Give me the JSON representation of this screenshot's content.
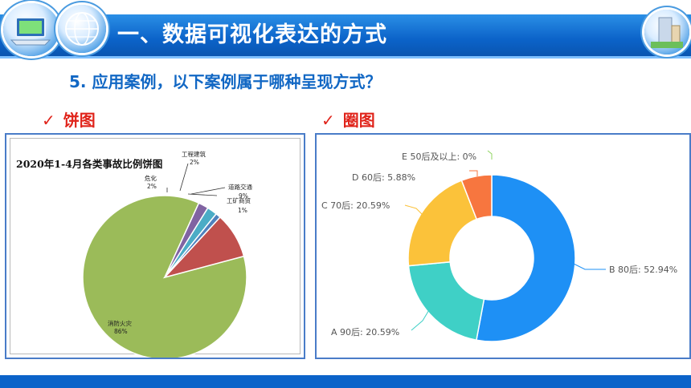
{
  "header": {
    "title": "一、数据可视化表达的方式"
  },
  "subtitle": "5. 应用案例，以下案例属于哪种呈现方式？",
  "left_category": {
    "check": "✓",
    "label": "饼图"
  },
  "right_category": {
    "check": "✓",
    "label": "圈图"
  },
  "chart_data": [
    {
      "type": "pie",
      "title": "2020年1-4月各类事故比例饼图",
      "slices": [
        {
          "name": "消防火灾",
          "label": "86%",
          "value": 86,
          "color": "#9bbb59"
        },
        {
          "name": "危化",
          "label": "2%",
          "value": 2,
          "color": "#8064a2"
        },
        {
          "name": "工程建筑",
          "label": "2%",
          "value": 2,
          "color": "#4bacc6"
        },
        {
          "name": "工矿商贸",
          "label": "1%",
          "value": 1,
          "color": "#4f81bd"
        },
        {
          "name": "道路交通",
          "label": "9%",
          "value": 9,
          "color": "#c0504d"
        }
      ],
      "name_labels": {
        "fire": "消防火灾",
        "chem": "危化",
        "build": "工程建筑",
        "road": "道路交通",
        "mining": "工矿商贸"
      }
    },
    {
      "type": "pie",
      "subtype": "donut",
      "slices": [
        {
          "name": "B 80后",
          "label": "B 80后: 52.94%",
          "value": 52.94,
          "color": "#1e90f5"
        },
        {
          "name": "A 90后",
          "label": "A 90后: 20.59%",
          "value": 20.59,
          "color": "#3fd0c6"
        },
        {
          "name": "C 70后",
          "label": "C 70后: 20.59%",
          "value": 20.59,
          "color": "#fbc23a"
        },
        {
          "name": "D 60后",
          "label": "D 60后: 5.88%",
          "value": 5.88,
          "color": "#f7763f"
        },
        {
          "name": "E 50后及以上",
          "label": "E 50后及以上: 0%",
          "value": 0,
          "color": "#8fd461"
        }
      ]
    }
  ]
}
